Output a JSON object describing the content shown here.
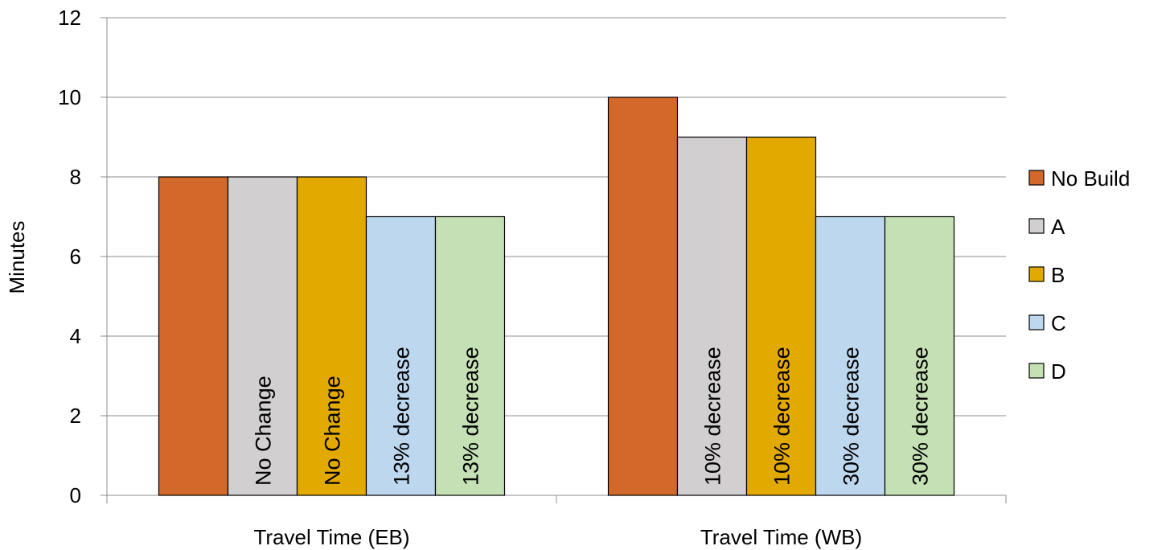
{
  "chart_data": {
    "type": "bar",
    "title": "",
    "xlabel": "",
    "ylabel": "Minutes",
    "ylim": [
      0,
      12
    ],
    "yticks": [
      0,
      2,
      4,
      6,
      8,
      10,
      12
    ],
    "grid": "horizontal",
    "legend_position": "right",
    "categories": [
      "Travel Time (EB)",
      "Travel Time (WB)"
    ],
    "series": [
      {
        "name": "No Build",
        "color": "#D2692A",
        "values": [
          8,
          10
        ],
        "labels": [
          "",
          ""
        ]
      },
      {
        "name": "A",
        "color": "#D1CFD0",
        "values": [
          8,
          9
        ],
        "labels": [
          "No Change",
          "10% decrease"
        ]
      },
      {
        "name": "B",
        "color": "#E2A900",
        "values": [
          8,
          9
        ],
        "labels": [
          "No Change",
          "10% decrease"
        ]
      },
      {
        "name": "C",
        "color": "#BDD7EE",
        "values": [
          7,
          7
        ],
        "labels": [
          "13% decrease",
          "30% decrease"
        ]
      },
      {
        "name": "D",
        "color": "#C5E0B4",
        "values": [
          7,
          7
        ],
        "labels": [
          "13% decrease",
          "30% decrease"
        ]
      }
    ]
  }
}
